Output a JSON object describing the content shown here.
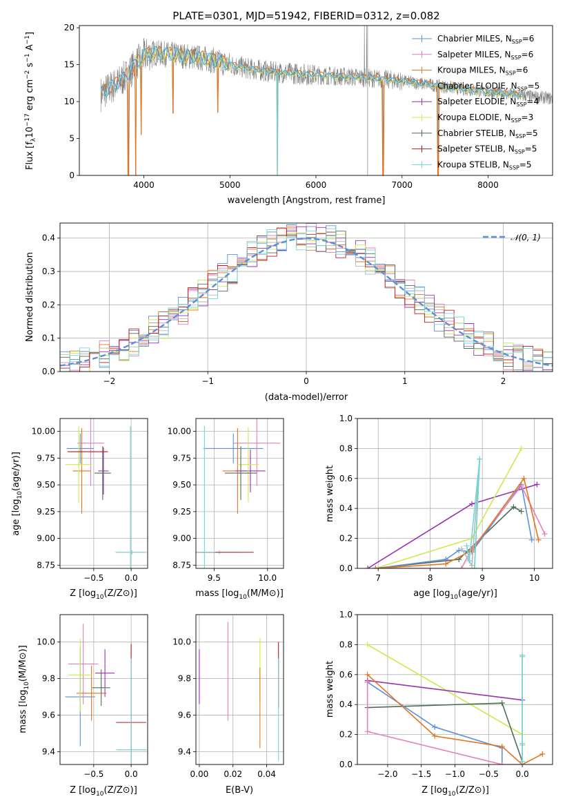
{
  "colors": {
    "chabrier_miles": "#5b8fd9",
    "salpeter_miles": "#e47fbf",
    "kroupa_miles": "#e6731b",
    "chabrier_elodie": "#b6b6b6",
    "salpeter_elodie": "#9a2fb4",
    "kroupa_elodie": "#cfe84a",
    "chabrier_stelib": "#4e6b57",
    "salpeter_stelib": "#c1161b",
    "kroupa_stelib": "#6fd6d6",
    "data": "#808080",
    "gauss": "#5b8fd9"
  },
  "legend_spectrum": [
    {
      "label": "Chabrier MILES, N",
      "sub": "SSP",
      "tail": "=6",
      "color": "#5b8fd9"
    },
    {
      "label": "Salpeter MILES, N",
      "sub": "SSP",
      "tail": "=6",
      "color": "#e47fbf"
    },
    {
      "label": "Kroupa MILES, N",
      "sub": "SSP",
      "tail": "=6",
      "color": "#e6731b"
    },
    {
      "label": "Chabrier ELODIE, N",
      "sub": "SSP",
      "tail": "=5",
      "color": "#b6b6b6"
    },
    {
      "label": "Salpeter ELODIE, N",
      "sub": "SSP",
      "tail": "=4",
      "color": "#9a2fb4"
    },
    {
      "label": "Kroupa ELODIE, N",
      "sub": "SSP",
      "tail": "=3",
      "color": "#cfe84a"
    },
    {
      "label": "Chabrier STELIB, N",
      "sub": "SSP",
      "tail": "=5",
      "color": "#4e6b57"
    },
    {
      "label": "Salpeter STELIB, N",
      "sub": "SSP",
      "tail": "=5",
      "color": "#c1161b"
    },
    {
      "label": "Kroupa STELIB, N",
      "sub": "SSP",
      "tail": "=5",
      "color": "#6fd6d6"
    }
  ],
  "chart_data": [
    {
      "id": "spectrum",
      "type": "line",
      "title": "PLATE=0301, MJD=51942, FIBERID=0312, z=0.082",
      "xlabel": "wavelength [Angstrom, rest frame]",
      "ylabel": "Flux [f_λ 10^-17 erg cm^-2 s^-1 A^-1]",
      "xlim": [
        3250,
        8750
      ],
      "ylim": [
        0,
        20.3
      ],
      "xticks": [
        4000,
        5000,
        6000,
        7000,
        8000
      ],
      "yticks": [
        0,
        5,
        10,
        15,
        20
      ],
      "continuum": {
        "wavelength": [
          3500,
          3600,
          3700,
          3800,
          3900,
          4000,
          4100,
          4200,
          4400,
          4600,
          4800,
          5000,
          5200,
          5500,
          6000,
          6500,
          7000,
          7500,
          8000,
          8500,
          8750
        ],
        "flux": [
          11.0,
          11.8,
          12.5,
          13.5,
          15.0,
          16.2,
          16.6,
          16.5,
          16.3,
          16.0,
          15.6,
          15.0,
          14.5,
          14.0,
          13.6,
          13.3,
          12.8,
          12.0,
          11.3,
          10.7,
          10.4
        ]
      },
      "absorption_dips": [
        {
          "wavelength": 3820,
          "flux": 0.0
        },
        {
          "wavelength": 3905,
          "flux": 0.0
        },
        {
          "wavelength": 3970,
          "flux": 5.5
        },
        {
          "wavelength": 4340,
          "flux": 8.4
        },
        {
          "wavelength": 4861,
          "flux": 8.5
        },
        {
          "wavelength": 5550,
          "flux": 0.0
        },
        {
          "wavelength": 6780,
          "flux": 0.0
        },
        {
          "wavelength": 7420,
          "flux": 0.0
        }
      ],
      "emission_spikes": [
        {
          "wavelength": 6563,
          "flux": 20.3
        },
        {
          "wavelength": 6590,
          "flux": 20.3
        }
      ]
    },
    {
      "id": "residuals",
      "type": "line",
      "xlabel": "(data-model)/error",
      "ylabel": "Normed distribution",
      "xlim": [
        -2.5,
        2.5
      ],
      "ylim": [
        0,
        0.445
      ],
      "xticks": [
        -2,
        -1,
        0,
        1,
        2
      ],
      "yticks": [
        0.0,
        0.1,
        0.2,
        0.3,
        0.4
      ],
      "gaussian": {
        "name": "𝒩(0, 1)",
        "mean": 0,
        "sigma": 1
      },
      "hist_bin_width": 0.1
    },
    {
      "id": "age-vs-Z",
      "type": "scatter",
      "xlabel": "Z [log10(Z/Z⊙)]",
      "ylabel": "age  [log10(age/yr)]",
      "xlim": [
        -0.95,
        0.22
      ],
      "ylim": [
        8.72,
        10.12
      ],
      "xticks": [
        -0.5,
        0.0
      ],
      "yticks": [
        8.75,
        9.0,
        9.25,
        9.5,
        9.75,
        10.0
      ],
      "points": [
        {
          "series": "chabrier_miles",
          "x": -0.68,
          "y": 9.84,
          "xerr": 0.18,
          "yerr": 0.14
        },
        {
          "series": "salpeter_miles",
          "x": -0.54,
          "y": 9.89,
          "xerr": 0.18,
          "yerr": 0.4
        },
        {
          "series": "kroupa_miles",
          "x": -0.66,
          "y": 9.63,
          "xerr": 0.12,
          "yerr": 0.4
        },
        {
          "series": "chabrier_elodie",
          "x": 0.01,
          "y": 8.87,
          "xerr": 0.2,
          "yerr": 0.02
        },
        {
          "series": "salpeter_elodie",
          "x": -0.37,
          "y": 9.63,
          "xerr": 0.07,
          "yerr": 0.22
        },
        {
          "series": "kroupa_elodie",
          "x": -0.7,
          "y": 9.69,
          "xerr": 0.18,
          "yerr": 0.36
        },
        {
          "series": "chabrier_stelib",
          "x": -0.38,
          "y": 9.61,
          "xerr": 0.11,
          "yerr": 0.25
        },
        {
          "series": "salpeter_stelib",
          "x": -0.58,
          "y": 9.81,
          "xerr": 0.27,
          "yerr": 0.0
        },
        {
          "series": "kroupa_stelib",
          "x": -0.01,
          "y": 8.87,
          "xerr": 0.2,
          "yerr": 1.18
        }
      ]
    },
    {
      "id": "age-vs-mass",
      "type": "scatter",
      "xlabel": "mass [log10(M/M⊙)]",
      "ylabel": "",
      "xlim": [
        9.33,
        10.15
      ],
      "ylim": [
        8.72,
        10.12
      ],
      "xticks": [
        9.5,
        10.0
      ],
      "yticks": [
        8.75,
        9.0,
        9.25,
        9.5,
        9.75,
        10.0
      ],
      "points": [
        {
          "series": "chabrier_miles",
          "x": 9.68,
          "y": 9.84,
          "xerr": 0.28,
          "yerr": 0.14
        },
        {
          "series": "salpeter_miles",
          "x": 9.9,
          "y": 9.89,
          "xerr": 0.22,
          "yerr": 0.4
        },
        {
          "series": "kroupa_miles",
          "x": 9.72,
          "y": 9.63,
          "xerr": 0.14,
          "yerr": 0.4
        },
        {
          "series": "chabrier_elodie",
          "x": 9.55,
          "y": 8.87,
          "xerr": 0.2,
          "yerr": 0.02
        },
        {
          "series": "salpeter_elodie",
          "x": 9.84,
          "y": 9.63,
          "xerr": 0.14,
          "yerr": 0.2
        },
        {
          "series": "kroupa_elodie",
          "x": 9.82,
          "y": 9.69,
          "xerr": 0.1,
          "yerr": 0.35
        },
        {
          "series": "chabrier_stelib",
          "x": 9.75,
          "y": 9.61,
          "xerr": 0.15,
          "yerr": 0.25
        },
        {
          "series": "salpeter_stelib",
          "x": 9.57,
          "y": 8.87,
          "xerr": 0.3,
          "yerr": 0.0
        },
        {
          "series": "kroupa_stelib",
          "x": 9.41,
          "y": 8.87,
          "xerr": 0.1,
          "yerr": 1.18
        }
      ]
    },
    {
      "id": "weight-vs-age",
      "type": "line",
      "xlabel": "age  [log10(age/yr)]",
      "ylabel": "mass weight",
      "xlim": [
        6.6,
        10.35
      ],
      "ylim": [
        0,
        1.0
      ],
      "xticks": [
        7,
        8,
        9,
        10
      ],
      "yticks": [
        0.0,
        0.2,
        0.4,
        0.6,
        0.8,
        1.0
      ],
      "series": [
        {
          "key": "salpeter_elodie",
          "x": [
            6.8,
            8.8,
            10.05
          ],
          "y": [
            0.0,
            0.43,
            0.56
          ]
        },
        {
          "key": "kroupa_elodie",
          "x": [
            6.95,
            8.8,
            9.75
          ],
          "y": [
            0.0,
            0.2,
            0.8
          ]
        },
        {
          "key": "chabrier_stelib",
          "x": [
            6.95,
            8.55,
            9.6,
            9.75
          ],
          "y": [
            0.0,
            0.06,
            0.41,
            0.38
          ]
        },
        {
          "key": "chabrier_miles",
          "x": [
            6.95,
            8.3,
            8.55,
            8.8,
            9.75,
            9.95
          ],
          "y": [
            0.0,
            0.06,
            0.12,
            0.11,
            0.56,
            0.19
          ]
        },
        {
          "key": "salpeter_miles",
          "x": [
            6.95,
            8.6,
            8.8,
            9.75,
            10.2
          ],
          "y": [
            0.0,
            0.0,
            0.13,
            0.55,
            0.23
          ]
        },
        {
          "key": "kroupa_miles",
          "x": [
            6.95,
            8.3,
            8.8,
            9.8,
            10.08
          ],
          "y": [
            0.0,
            0.03,
            0.12,
            0.6,
            0.19
          ]
        },
        {
          "key": "chabrier_elodie",
          "x": [
            8.6,
            8.8,
            8.95,
            8.85
          ],
          "y": [
            0.13,
            0.02,
            0.73,
            0.0
          ]
        },
        {
          "key": "kroupa_stelib",
          "x": [
            8.7,
            8.75,
            8.95,
            8.85
          ],
          "y": [
            0.15,
            0.05,
            0.73,
            0.0
          ]
        }
      ]
    },
    {
      "id": "mass-vs-Z",
      "type": "scatter",
      "xlabel": "Z [log10(Z/Z⊙)]",
      "ylabel": "mass [log10(M/M⊙)]",
      "xlim": [
        -0.95,
        0.22
      ],
      "ylim": [
        9.33,
        10.15
      ],
      "xticks": [
        -0.5,
        0.0
      ],
      "yticks": [
        9.4,
        9.6,
        9.8,
        10.0
      ],
      "points": [
        {
          "series": "chabrier_miles",
          "x": -0.68,
          "y": 9.7,
          "xerr": 0.2,
          "yerr": 0.27
        },
        {
          "series": "salpeter_miles",
          "x": -0.64,
          "y": 9.88,
          "xerr": 0.2,
          "yerr": 0.22
        },
        {
          "series": "kroupa_miles",
          "x": -0.53,
          "y": 9.72,
          "xerr": 0.2,
          "yerr": 0.15
        },
        {
          "series": "chabrier_elodie",
          "x": 0.01,
          "y": 9.41,
          "xerr": 0.2,
          "yerr": 0.0
        },
        {
          "series": "salpeter_elodie",
          "x": -0.35,
          "y": 9.83,
          "xerr": 0.13,
          "yerr": 0.13
        },
        {
          "series": "kroupa_elodie",
          "x": -0.68,
          "y": 9.82,
          "xerr": 0.16,
          "yerr": 0.2
        },
        {
          "series": "chabrier_stelib",
          "x": -0.4,
          "y": 9.75,
          "xerr": 0.12,
          "yerr": 0.1
        },
        {
          "series": "salpeter_stelib",
          "x": 0.0,
          "y": 9.56,
          "xerr": 0.2,
          "yerr": 0.43
        },
        {
          "series": "kroupa_stelib",
          "x": 0.0,
          "y": 9.41,
          "xerr": 0.2,
          "yerr": 0.5
        }
      ]
    },
    {
      "id": "mass-vs-EBV",
      "type": "scatter",
      "xlabel": "E(B-V)",
      "ylabel": "",
      "xlim": [
        -0.002,
        0.05
      ],
      "ylim": [
        9.33,
        10.15
      ],
      "xticks": [
        0.0,
        0.02,
        0.04
      ],
      "yticks": [
        9.4,
        9.6,
        9.8,
        10.0
      ],
      "points": [
        {
          "series": "salpeter_elodie",
          "x": 0.0,
          "y": 9.81,
          "xerr": 0.0,
          "yerr": 0.15
        },
        {
          "series": "salpeter_miles",
          "x": 0.017,
          "y": 9.84,
          "xerr": 0.0,
          "yerr": 0.27
        },
        {
          "series": "kroupa_elodie",
          "x": 0.036,
          "y": 9.85,
          "xerr": 0.0,
          "yerr": 0.17
        },
        {
          "series": "kroupa_miles",
          "x": 0.036,
          "y": 9.64,
          "xerr": 0.0,
          "yerr": 0.22
        },
        {
          "series": "salpeter_stelib",
          "x": 0.047,
          "y": 9.82,
          "xerr": 0.0,
          "yerr": 0.18
        },
        {
          "series": "kroupa_stelib",
          "x": 0.047,
          "y": 9.63,
          "xerr": 0.0,
          "yerr": 0.28
        }
      ]
    },
    {
      "id": "weight-vs-Z",
      "type": "line",
      "xlabel": "Z [log10(Z/Z⊙)]",
      "ylabel": "mass weight",
      "xlim": [
        -2.45,
        0.45
      ],
      "ylim": [
        0,
        1.0
      ],
      "xticks": [
        -2.0,
        -1.5,
        -1.0,
        -0.5,
        0.0
      ],
      "yticks": [
        0.0,
        0.2,
        0.4,
        0.6,
        0.8,
        1.0
      ],
      "series": [
        {
          "key": "kroupa_elodie",
          "x": [
            -2.3,
            0.0
          ],
          "y": [
            0.8,
            0.2
          ]
        },
        {
          "key": "salpeter_elodie",
          "x": [
            -2.3,
            0.0
          ],
          "y": [
            0.56,
            0.43
          ]
        },
        {
          "key": "chabrier_stelib",
          "x": [
            -2.3,
            -0.3,
            0.0
          ],
          "y": [
            0.38,
            0.41,
            0.02
          ]
        },
        {
          "key": "chabrier_miles",
          "x": [
            -2.3,
            -1.3,
            -0.3,
            -0.3
          ],
          "y": [
            0.55,
            0.25,
            0.11,
            0.0
          ]
        },
        {
          "key": "kroupa_miles",
          "x": [
            -2.3,
            -1.3,
            -0.3,
            0.0,
            0.3
          ],
          "y": [
            0.6,
            0.19,
            0.12,
            0.0,
            0.07
          ]
        },
        {
          "key": "salpeter_miles",
          "x": [
            -2.3,
            -2.3,
            -0.3,
            0.0
          ],
          "y": [
            0.55,
            0.22,
            0.0,
            0.0
          ]
        },
        {
          "key": "chabrier_elodie",
          "x": [
            0.0,
            0.0,
            0.0
          ],
          "y": [
            0.0,
            0.72,
            0.13
          ]
        },
        {
          "key": "kroupa_stelib",
          "x": [
            0.0,
            0.0,
            0.0
          ],
          "y": [
            0.02,
            0.73,
            0.14
          ]
        }
      ]
    }
  ]
}
